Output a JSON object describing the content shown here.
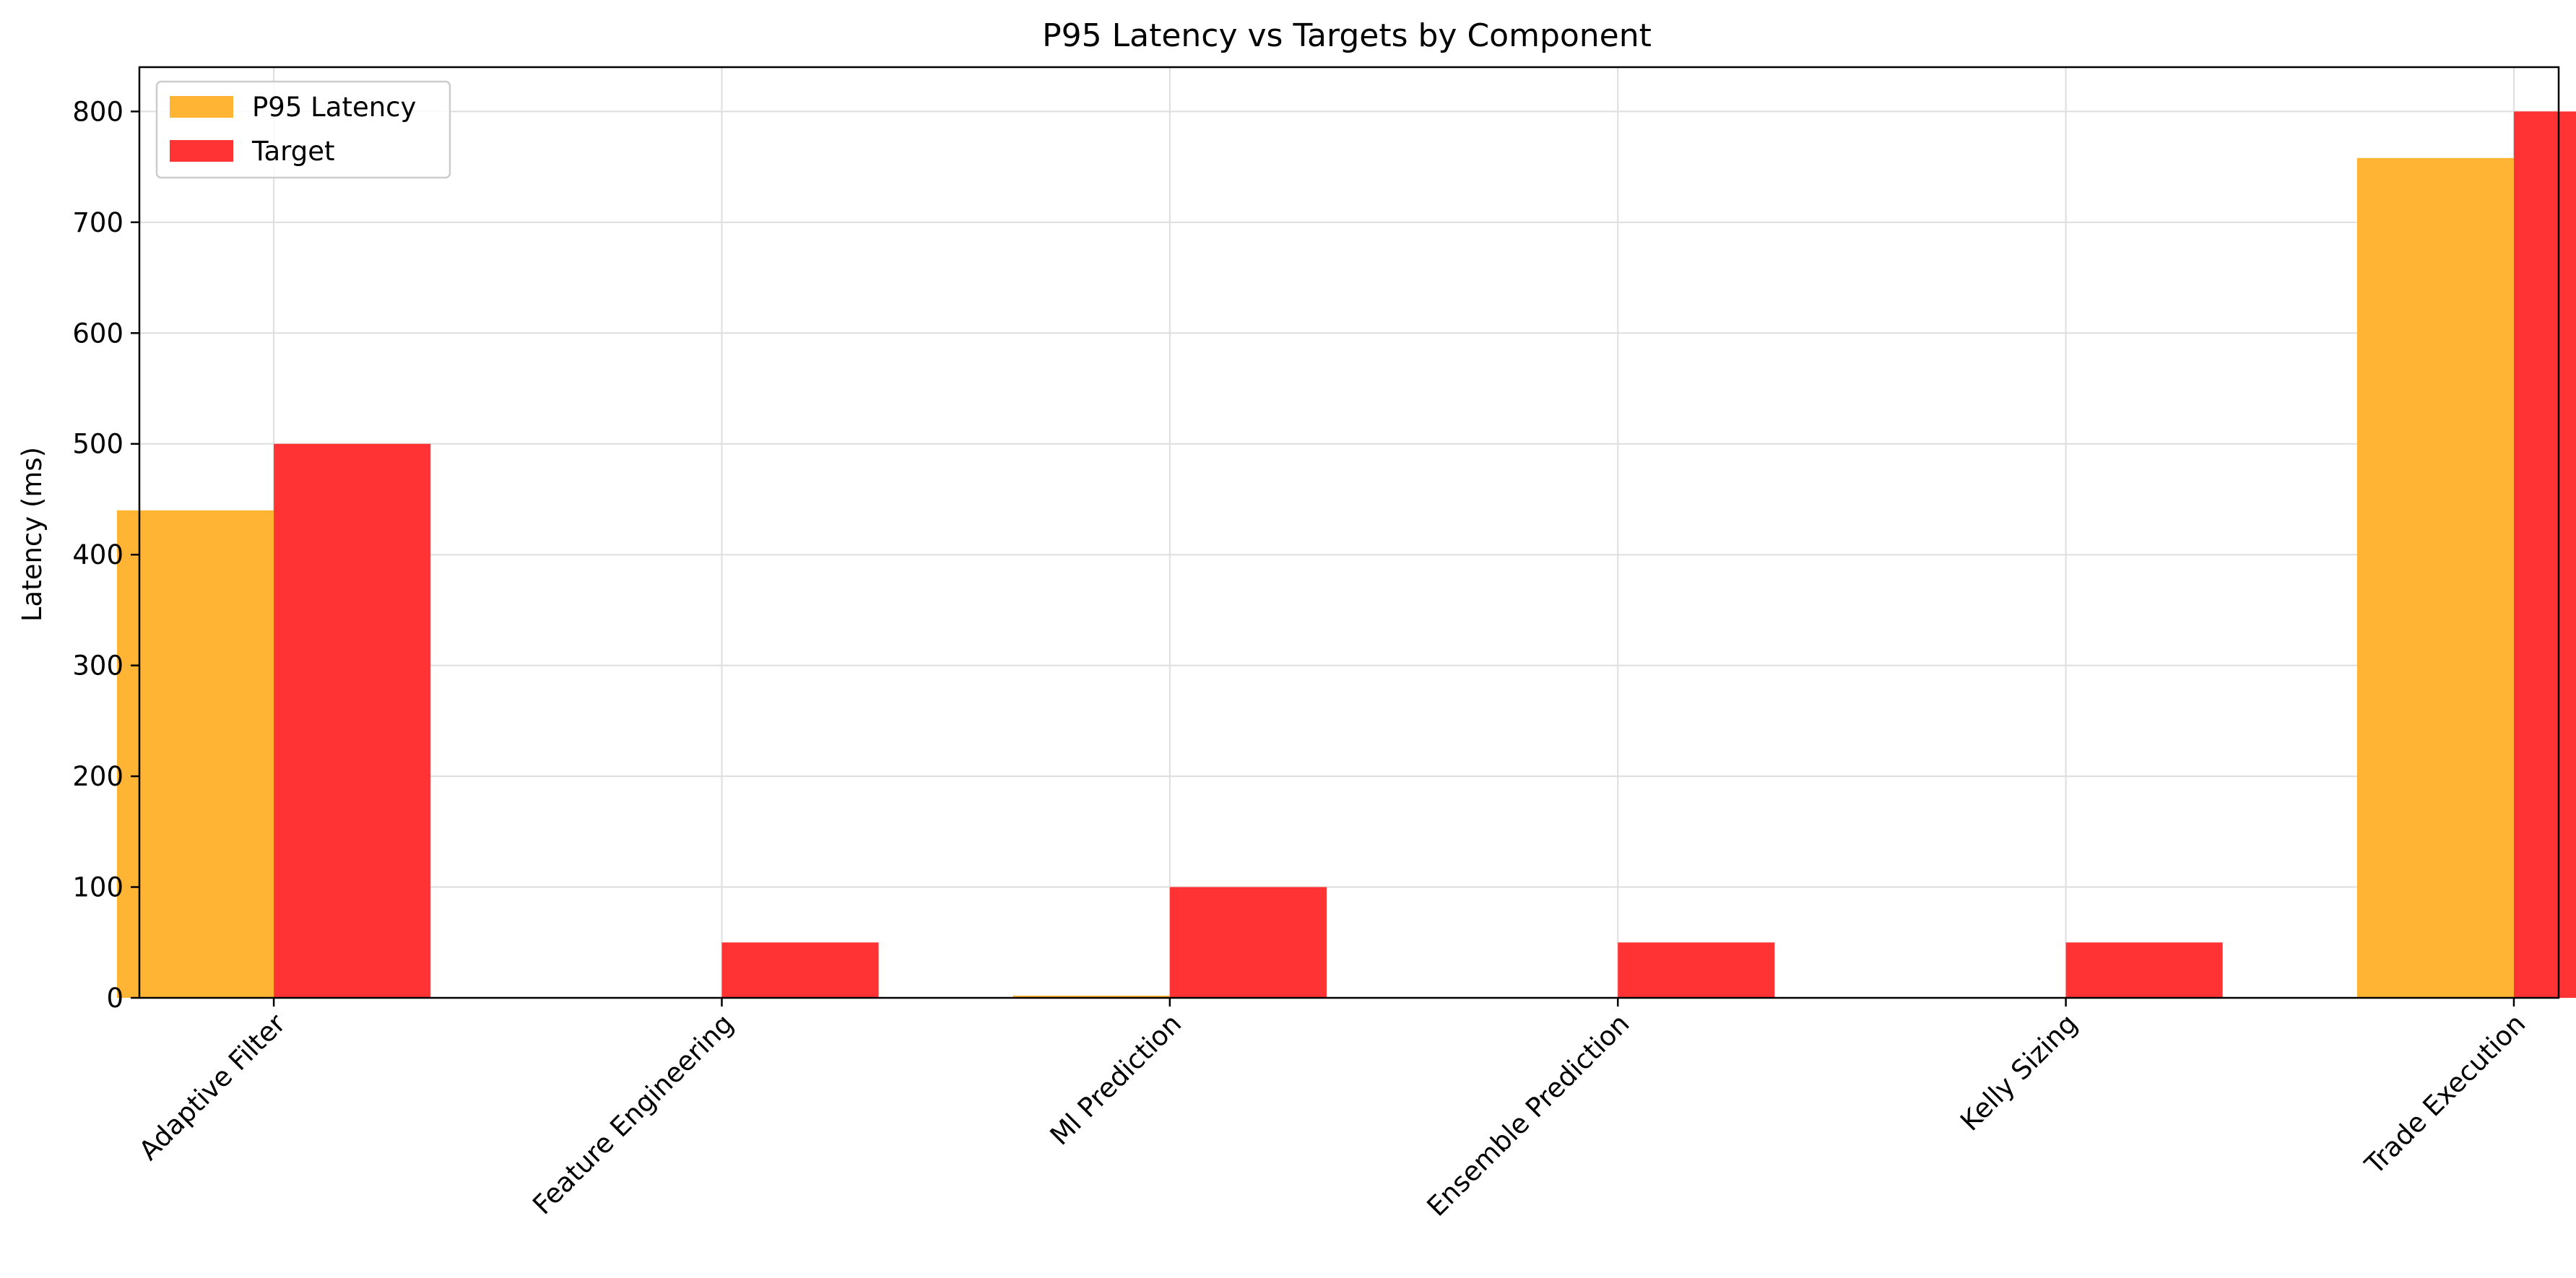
{
  "chart_data": {
    "type": "bar",
    "title": "P95 Latency vs Targets by Component",
    "xlabel": "",
    "ylabel": "Latency (ms)",
    "categories": [
      "Adaptive Filter",
      "Feature Engineering",
      "Ml Prediction",
      "Ensemble Prediction",
      "Kelly Sizing",
      "Trade Execution"
    ],
    "series": [
      {
        "name": "P95 Latency",
        "color": "#ffb433",
        "values": [
          440,
          0,
          2,
          0,
          0,
          758
        ]
      },
      {
        "name": "Target",
        "color": "#ff3333",
        "values": [
          500,
          50,
          100,
          50,
          50,
          800
        ]
      }
    ],
    "ylim": [
      0,
      840
    ],
    "yticks": [
      0,
      100,
      200,
      300,
      400,
      500,
      600,
      700,
      800
    ],
    "grid": true,
    "legend_position": "top-left"
  }
}
